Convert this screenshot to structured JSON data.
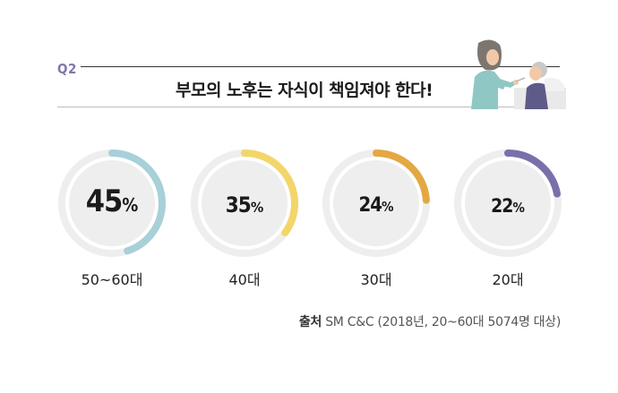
{
  "header": {
    "question_label": "Q2",
    "title": "부모의 노후는 자식이 책임져야 한다!"
  },
  "chart_data": {
    "type": "donut",
    "title": "부모의 노후는 자식이 책임져야 한다!",
    "categories": [
      "50~60대",
      "40대",
      "30대",
      "20대"
    ],
    "values": [
      45,
      35,
      24,
      22
    ],
    "unit": "%",
    "value_labels": [
      "45",
      "35",
      "24",
      "22"
    ],
    "colors": [
      "#a8d0d8",
      "#f3d56b",
      "#e3a843",
      "#7b6faa"
    ],
    "track_color": "#eeeeee",
    "inner_color": "#eeeeee"
  },
  "source": {
    "label": "출처",
    "text": "SM C&C (2018년, 20~60대 5074명 대상)"
  },
  "illustration": {
    "icon": "caregiver-feeding-elder-icon"
  }
}
